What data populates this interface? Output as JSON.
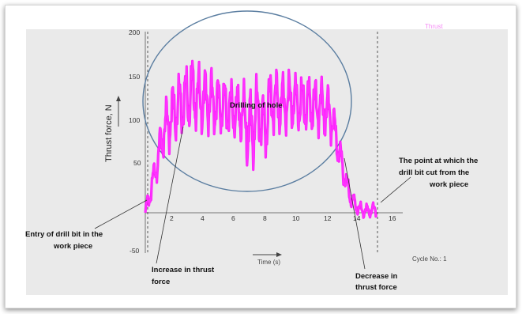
{
  "chart_data": {
    "type": "line",
    "title": "",
    "xlabel": "Time (s)",
    "ylabel": "Thrust force, N",
    "xlim": [
      0,
      16
    ],
    "ylim": [
      -50,
      200
    ],
    "x_ticks": [
      "2",
      "4",
      "6",
      "8",
      "10",
      "12",
      "14",
      "16"
    ],
    "y_ticks": [
      "200",
      "150",
      "100",
      "50",
      "-50"
    ],
    "series": [
      {
        "color": "#ff00ff",
        "x": [
          0.0,
          0.2,
          0.4,
          0.6,
          0.8,
          1.0,
          1.2,
          1.5,
          1.8,
          2.0,
          2.3,
          2.6,
          3.0,
          3.3,
          3.6,
          4.0,
          4.3,
          4.6,
          5.0,
          5.3,
          5.6,
          6.0,
          6.3,
          6.6,
          6.9,
          7.2,
          7.5,
          7.8,
          8.0,
          8.3,
          8.6,
          9.0,
          9.3,
          9.6,
          10.0,
          10.3,
          10.6,
          11.0,
          11.3,
          11.6,
          12.0,
          12.3,
          12.6,
          12.9,
          13.2,
          13.5,
          13.8,
          14.1,
          14.4,
          14.7,
          15.0
        ],
        "y": [
          0,
          15,
          30,
          45,
          60,
          80,
          95,
          105,
          115,
          120,
          125,
          130,
          140,
          135,
          130,
          132,
          128,
          126,
          125,
          122,
          120,
          118,
          115,
          100,
          90,
          118,
          110,
          95,
          128,
          130,
          128,
          126,
          130,
          128,
          127,
          125,
          126,
          124,
          125,
          120,
          115,
          95,
          70,
          45,
          25,
          12,
          5,
          3,
          2,
          3,
          4
        ],
        "amplitude": [
          5,
          10,
          12,
          12,
          15,
          20,
          22,
          25,
          28,
          28,
          28,
          30,
          32,
          30,
          28,
          28,
          28,
          26,
          25,
          25,
          25,
          25,
          25,
          35,
          40,
          30,
          30,
          30,
          28,
          28,
          28,
          26,
          25,
          25,
          25,
          25,
          25,
          25,
          25,
          25,
          22,
          18,
          15,
          12,
          10,
          8,
          6,
          6,
          6,
          6,
          6
        ]
      }
    ],
    "annotations": {
      "drilling_of_hole": "Drilling of hole",
      "entry": [
        "Entry of drill bit in the",
        "work piece"
      ],
      "increase": [
        "Increase in thrust",
        "force"
      ],
      "decrease": [
        "Decrease in",
        "thrust force"
      ],
      "exit": [
        "The point at which  the",
        "drill bit cut from the",
        "work piece"
      ],
      "cycle_no": "Cycle No.: 1",
      "legend_fragment": "Thrust"
    },
    "grid": false
  }
}
